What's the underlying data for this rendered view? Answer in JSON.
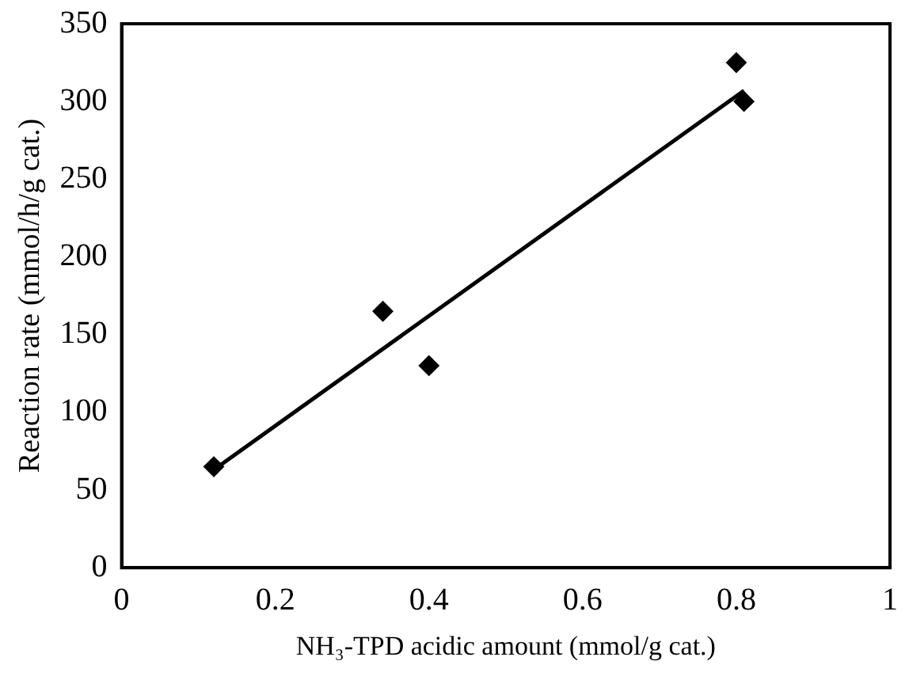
{
  "chart_data": {
    "type": "scatter",
    "xlabel": "NH₃-TPD acidic amount (mmol/g cat.)",
    "ylabel": "Reaction rate (mmol/h/g cat.)",
    "xlim": [
      0,
      1
    ],
    "xticks": [
      0,
      0.2,
      0.4,
      0.6,
      0.8,
      1
    ],
    "ylim": [
      0,
      350
    ],
    "yticks": [
      0,
      50,
      100,
      150,
      200,
      250,
      300,
      350
    ],
    "grid": false,
    "legend": false,
    "marker": "diamond",
    "series": [
      {
        "color": "#000000",
        "x": [
          0.12,
          0.34,
          0.4,
          0.8,
          0.81
        ],
        "values": [
          65,
          165,
          130,
          325,
          300
        ]
      },
      {
        "type": "line",
        "color": "#000000",
        "x": [
          0.12,
          0.81
        ],
        "values": [
          63,
          307
        ],
        "marker": "none",
        "line_style": "solid"
      }
    ]
  }
}
